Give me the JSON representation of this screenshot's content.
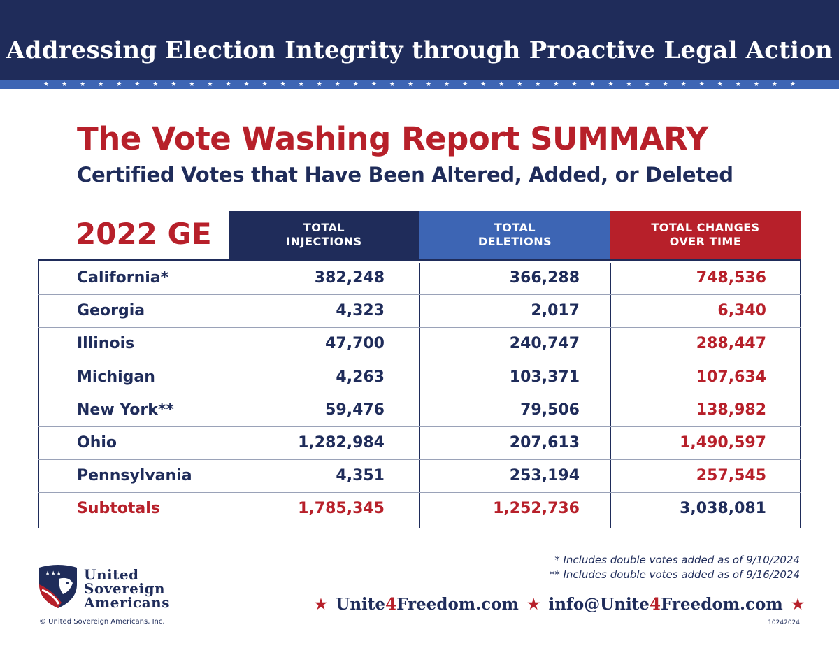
{
  "header": {
    "banner_title": "Addressing Election Integrity through Proactive Legal Action"
  },
  "report": {
    "title": "The Vote Washing Report SUMMARY",
    "subtitle": "Certified Votes that Have Been Altered, Added, or Deleted"
  },
  "table": {
    "year_label": "2022 GE",
    "columns": [
      "TOTAL\nINJECTIONS",
      "TOTAL\nDELETIONS",
      "TOTAL CHANGES\nOVER TIME"
    ],
    "rows": [
      {
        "state": "California*",
        "injections": "382,248",
        "deletions": "366,288",
        "total": "748,536"
      },
      {
        "state": "Georgia",
        "injections": "4,323",
        "deletions": "2,017",
        "total": "6,340"
      },
      {
        "state": "Illinois",
        "injections": "47,700",
        "deletions": "240,747",
        "total": "288,447"
      },
      {
        "state": "Michigan",
        "injections": "4,263",
        "deletions": "103,371",
        "total": "107,634"
      },
      {
        "state": "New York**",
        "injections": "59,476",
        "deletions": "79,506",
        "total": "138,982"
      },
      {
        "state": "Ohio",
        "injections": "1,282,984",
        "deletions": "207,613",
        "total": "1,490,597"
      },
      {
        "state": "Pennsylvania",
        "injections": "4,351",
        "deletions": "253,194",
        "total": "257,545"
      }
    ],
    "subtotals": {
      "state": "Subtotals",
      "injections": "1,785,345",
      "deletions": "1,252,736",
      "total": "3,038,081"
    }
  },
  "footnotes": [
    "* Includes double votes added as of 9/10/2024",
    "** Includes double votes added as of 9/16/2024"
  ],
  "footer": {
    "logo_lines": [
      "United",
      "Sovereign",
      "Americans"
    ],
    "copyright": "© United Sovereign Americans, Inc.",
    "website_prefix": "Unite",
    "website_four": "4",
    "website_suffix": "Freedom.com",
    "email_prefix": "info@Unite",
    "email_four": "4",
    "email_suffix": "Freedom.com",
    "doc_code": "10242024"
  },
  "colors": {
    "navy": "#1f2c5a",
    "blue": "#3d65b4",
    "red": "#b7202a"
  },
  "icons": {
    "logo": "eagle-shield-icon",
    "separator": "star-icon"
  }
}
